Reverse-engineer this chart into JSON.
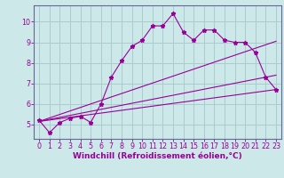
{
  "xlabel": "Windchill (Refroidissement éolien,°C)",
  "bg_color": "#cce8e8",
  "line_color": "#990099",
  "grid_color": "#aacccc",
  "axis_color": "#666699",
  "xlim": [
    -0.5,
    23.5
  ],
  "ylim": [
    4.3,
    10.8
  ],
  "yticks": [
    5,
    6,
    7,
    8,
    9,
    10
  ],
  "xticks": [
    0,
    1,
    2,
    3,
    4,
    5,
    6,
    7,
    8,
    9,
    10,
    11,
    12,
    13,
    14,
    15,
    16,
    17,
    18,
    19,
    20,
    21,
    22,
    23
  ],
  "line1_x": [
    0,
    1,
    2,
    3,
    4,
    5,
    6,
    7,
    8,
    9,
    10,
    11,
    12,
    13,
    14,
    15,
    16,
    17,
    18,
    19,
    20,
    21,
    22,
    23
  ],
  "line1_y": [
    5.2,
    4.6,
    5.1,
    5.3,
    5.4,
    5.1,
    6.0,
    7.3,
    8.1,
    8.8,
    9.1,
    9.8,
    9.8,
    10.4,
    9.5,
    9.1,
    9.6,
    9.6,
    9.1,
    9.0,
    9.0,
    8.5,
    7.3,
    6.7
  ],
  "line2_x": [
    0,
    23
  ],
  "line2_y": [
    5.15,
    6.7
  ],
  "line3_x": [
    0,
    23
  ],
  "line3_y": [
    5.15,
    9.05
  ],
  "line4_x": [
    0,
    23
  ],
  "line4_y": [
    5.15,
    7.4
  ],
  "xlabel_fontsize": 6.5,
  "tick_fontsize": 5.8
}
